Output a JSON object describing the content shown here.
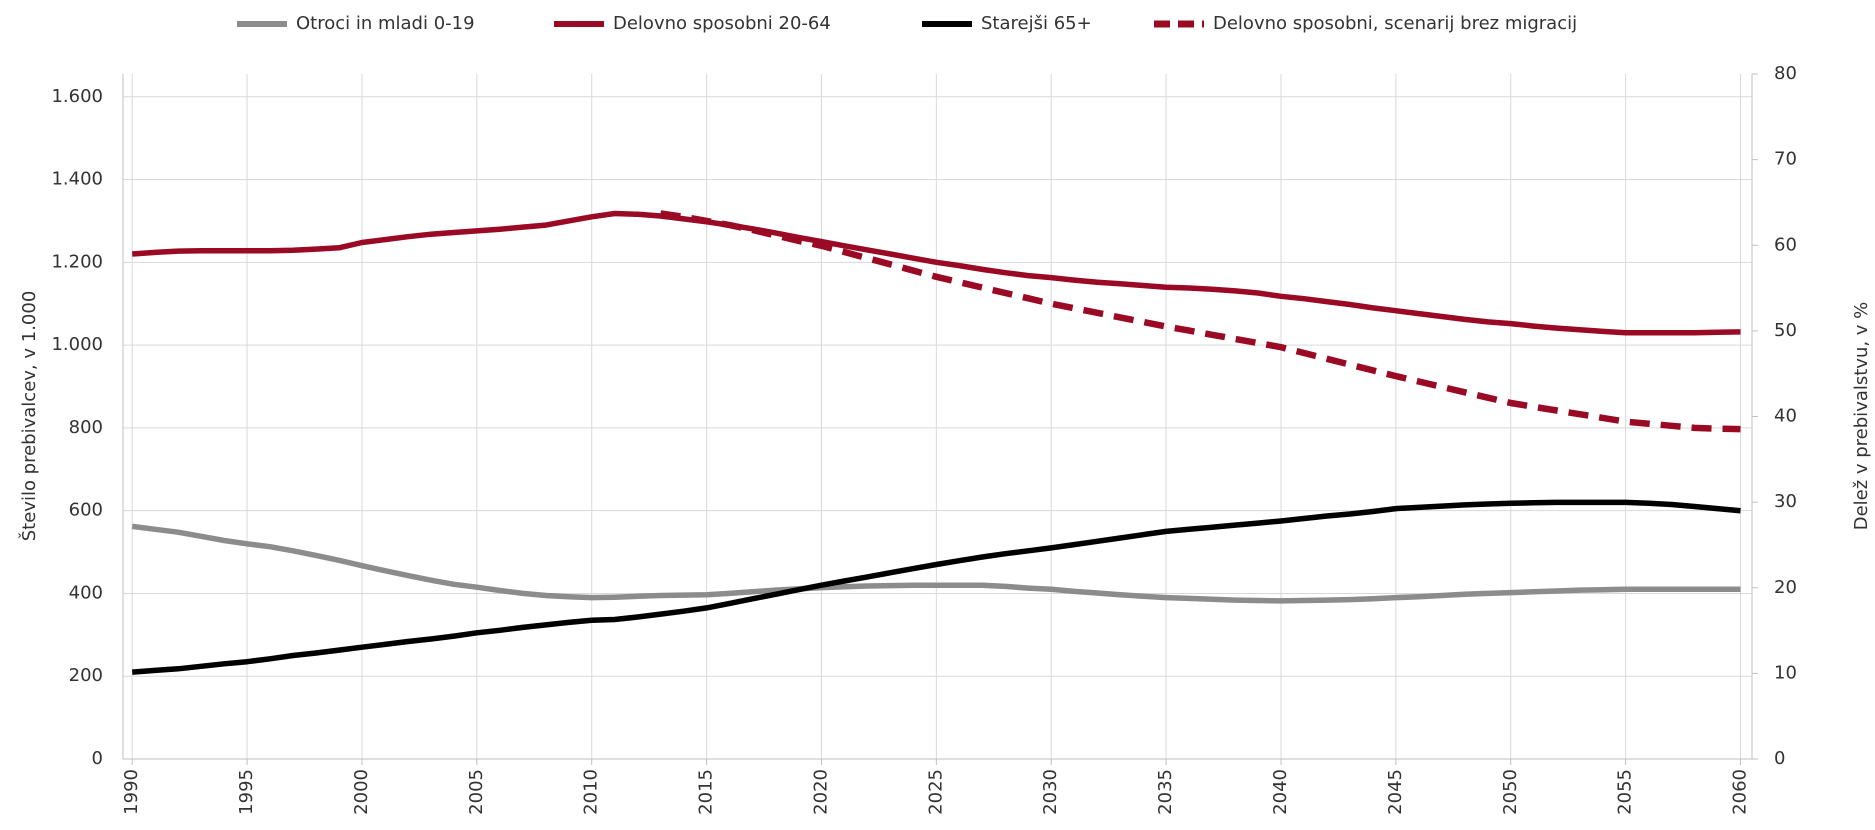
{
  "chart_data": {
    "type": "line",
    "y_label": "Število prebivalcev, v 1.000",
    "y2_label": "Delež v prebivalstvu, v %",
    "x": [
      1990,
      1991,
      1992,
      1993,
      1994,
      1995,
      1996,
      1997,
      1998,
      1999,
      2000,
      2001,
      2002,
      2003,
      2004,
      2005,
      2006,
      2007,
      2008,
      2009,
      2010,
      2011,
      2012,
      2013,
      2014,
      2015,
      2016,
      2017,
      2018,
      2019,
      2020,
      2021,
      2022,
      2023,
      2024,
      2025,
      2026,
      2027,
      2028,
      2029,
      2030,
      2031,
      2032,
      2033,
      2034,
      2035,
      2036,
      2037,
      2038,
      2039,
      2040,
      2041,
      2042,
      2043,
      2044,
      2045,
      2046,
      2047,
      2048,
      2049,
      2050,
      2051,
      2052,
      2053,
      2054,
      2055,
      2056,
      2057,
      2058,
      2059,
      2060
    ],
    "series": [
      {
        "name": "Otroci in mladi 0-19",
        "color": "#8c8c8c",
        "dashed": false,
        "values": [
          562,
          555,
          548,
          538,
          528,
          520,
          513,
          503,
          492,
          480,
          467,
          455,
          443,
          432,
          422,
          415,
          407,
          400,
          395,
          392,
          390,
          391,
          393,
          395,
          396,
          397,
          400,
          404,
          408,
          411,
          414,
          416,
          418,
          419,
          420,
          420,
          420,
          420,
          417,
          413,
          410,
          405,
          401,
          397,
          393,
          390,
          388,
          386,
          384,
          383,
          382,
          383,
          384,
          385,
          387,
          390,
          392,
          395,
          398,
          400,
          402,
          404,
          406,
          408,
          409,
          410,
          410,
          410,
          410,
          410,
          410
        ]
      },
      {
        "name": "Delovno sposobni 20-64",
        "color": "#9b0a24",
        "dashed": false,
        "values": [
          1220,
          1224,
          1227,
          1228,
          1228,
          1228,
          1228,
          1229,
          1232,
          1235,
          1248,
          1255,
          1262,
          1268,
          1272,
          1276,
          1280,
          1285,
          1290,
          1300,
          1310,
          1318,
          1316,
          1312,
          1305,
          1298,
          1290,
          1281,
          1271,
          1260,
          1250,
          1240,
          1230,
          1220,
          1210,
          1200,
          1192,
          1183,
          1175,
          1168,
          1163,
          1157,
          1152,
          1148,
          1144,
          1140,
          1138,
          1135,
          1131,
          1126,
          1118,
          1112,
          1105,
          1098,
          1090,
          1083,
          1076,
          1069,
          1062,
          1056,
          1052,
          1046,
          1041,
          1037,
          1033,
          1030,
          1030,
          1030,
          1030,
          1031,
          1032
        ]
      },
      {
        "name": "Starejši 65+",
        "color": "#000000",
        "dashed": false,
        "values": [
          210,
          214,
          218,
          224,
          230,
          235,
          242,
          250,
          256,
          263,
          270,
          277,
          284,
          290,
          297,
          305,
          311,
          318,
          324,
          330,
          335,
          337,
          343,
          350,
          357,
          365,
          376,
          387,
          398,
          409,
          420,
          430,
          440,
          450,
          460,
          470,
          479,
          488,
          496,
          503,
          510,
          518,
          526,
          534,
          542,
          550,
          555,
          560,
          565,
          570,
          575,
          581,
          587,
          592,
          598,
          605,
          608,
          611,
          614,
          616,
          618,
          619,
          620,
          620,
          620,
          620,
          618,
          615,
          610,
          605,
          600
        ]
      },
      {
        "name": "Delovno sposobni, scenarij brez migracij",
        "color": "#9b0a24",
        "dashed": true,
        "values": [
          null,
          null,
          null,
          null,
          null,
          null,
          null,
          null,
          null,
          null,
          null,
          null,
          null,
          null,
          null,
          null,
          null,
          null,
          null,
          null,
          null,
          null,
          null,
          1318,
          1310,
          1300,
          1290,
          1278,
          1265,
          1252,
          1240,
          1225,
          1210,
          1195,
          1180,
          1165,
          1152,
          1139,
          1126,
          1113,
          1100,
          1089,
          1078,
          1067,
          1056,
          1045,
          1035,
          1025,
          1015,
          1005,
          995,
          981,
          967,
          953,
          939,
          925,
          912,
          899,
          886,
          873,
          860,
          851,
          842,
          833,
          824,
          815,
          810,
          805,
          800,
          798,
          797
        ]
      }
    ],
    "xlim": [
      1989.6,
      2060.5
    ],
    "xticks": [
      1990,
      1995,
      2000,
      2005,
      2010,
      2015,
      2020,
      2025,
      2030,
      2035,
      2040,
      2045,
      2050,
      2055,
      2060
    ],
    "ylim": [
      0,
      1655
    ],
    "yticks": [
      0,
      200,
      400,
      600,
      800,
      {
        "value": 1000,
        "label": "1.000"
      },
      {
        "value": 1200,
        "label": "1.200"
      },
      {
        "value": 1400,
        "label": "1.400"
      },
      {
        "value": 1600,
        "label": "1.600"
      }
    ],
    "y2lim": [
      0,
      80
    ],
    "y2ticks": [
      0,
      10,
      20,
      30,
      40,
      50,
      60,
      70,
      80
    ],
    "grid": true,
    "legend": "top"
  }
}
